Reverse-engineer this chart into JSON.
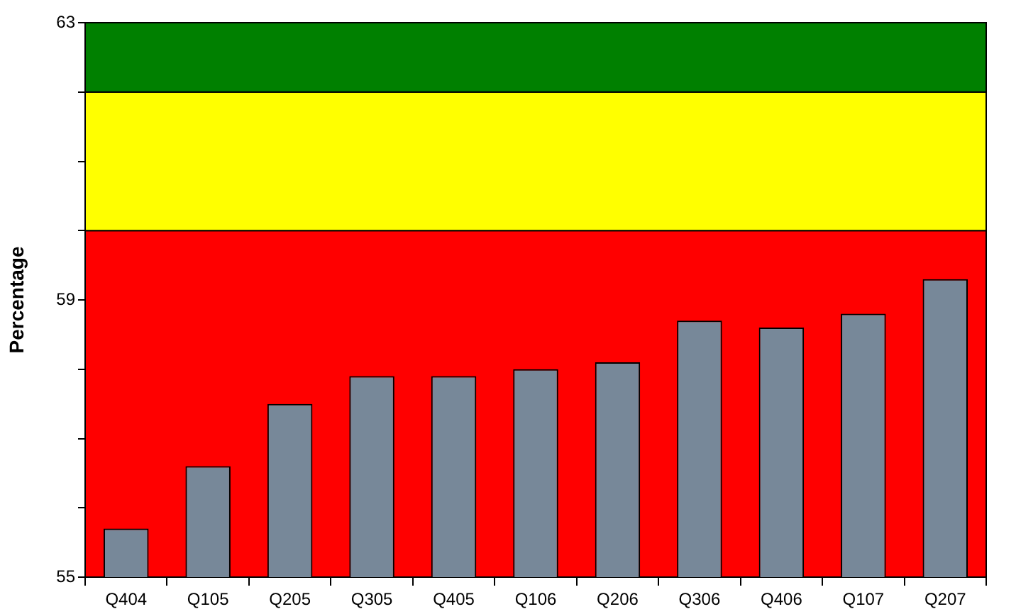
{
  "chart_data": {
    "type": "bar",
    "ylabel": "Percentage",
    "categories": [
      "Q404",
      "Q105",
      "Q205",
      "Q305",
      "Q405",
      "Q106",
      "Q206",
      "Q306",
      "Q406",
      "Q107",
      "Q207"
    ],
    "values": [
      55.7,
      56.6,
      57.5,
      57.9,
      57.9,
      58.0,
      58.1,
      58.7,
      58.6,
      58.8,
      59.3
    ],
    "color": "#778899",
    "ylim": [
      55,
      63
    ],
    "yticks": [
      55,
      {
        "value": 56,
        "label": null
      },
      {
        "value": 57,
        "label": null
      },
      {
        "value": 58,
        "label": null
      },
      59,
      {
        "value": 60,
        "label": null
      },
      {
        "value": 61,
        "label": null
      },
      {
        "value": 62,
        "label": null
      },
      63
    ],
    "bands": [
      {
        "axis": "y",
        "from": 55,
        "to": 60,
        "color": "#ff0000"
      },
      {
        "axis": "y",
        "from": 60,
        "to": 62,
        "color": "#ffff00"
      },
      {
        "axis": "y",
        "from": 62,
        "to": 63,
        "color": "#008000"
      }
    ],
    "legend": false
  }
}
